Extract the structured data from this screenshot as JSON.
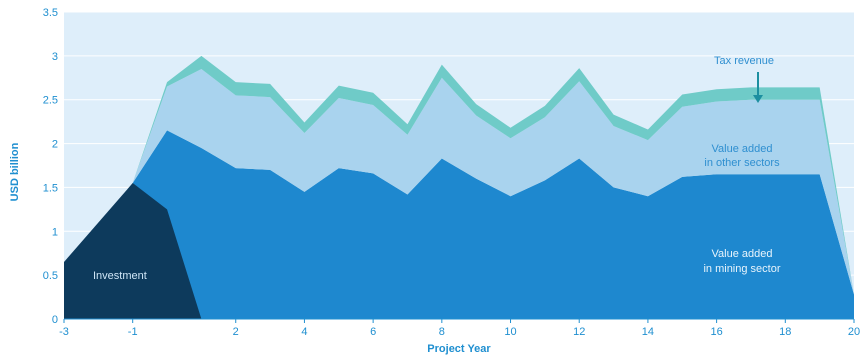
{
  "chart_data": {
    "type": "area",
    "xlabel": "Project Year",
    "ylabel": "USD billion",
    "xlim": [
      -3,
      20
    ],
    "ylim": [
      0,
      3.5
    ],
    "x_ticks": [
      "-3",
      "-1",
      "2",
      "4",
      "6",
      "8",
      "10",
      "12",
      "14",
      "16",
      "18",
      "20"
    ],
    "y_ticks": [
      "0",
      "0.5",
      "1",
      "1.5",
      "2",
      "2.5",
      "3",
      "3.5"
    ],
    "grid": "horizontal",
    "series": [
      {
        "name": "Investment",
        "color": "#0d3a5c",
        "x": [
          -3,
          -1,
          0,
          1,
          2
        ],
        "values": [
          0.65,
          1.55,
          1.25,
          0.0,
          0.0
        ]
      },
      {
        "name": "Value added in mining sector",
        "color": "#1e88cf",
        "x": [
          -1,
          0,
          1,
          2,
          3,
          4,
          5,
          6,
          7,
          8,
          9,
          10,
          11,
          12,
          13,
          14,
          15,
          16,
          17,
          18,
          19,
          20
        ],
        "values": [
          1.55,
          2.15,
          1.95,
          1.72,
          1.7,
          1.45,
          1.72,
          1.66,
          1.42,
          1.83,
          1.6,
          1.4,
          1.58,
          1.83,
          1.5,
          1.4,
          1.62,
          1.65,
          1.65,
          1.65,
          1.65,
          0.28
        ]
      },
      {
        "name": "Value added in other sector",
        "color": "#a9d3ee",
        "x": [
          -1,
          0,
          1,
          2,
          3,
          4,
          5,
          6,
          7,
          8,
          9,
          10,
          11,
          12,
          13,
          14,
          15,
          16,
          17,
          18,
          19,
          20
        ],
        "values": [
          0.0,
          0.5,
          0.9,
          0.83,
          0.83,
          0.67,
          0.8,
          0.78,
          0.68,
          0.92,
          0.72,
          0.66,
          0.72,
          0.88,
          0.7,
          0.64,
          0.8,
          0.83,
          0.85,
          0.85,
          0.85,
          0.0
        ]
      },
      {
        "name": "Tax revenue",
        "color": "#6fcbc8",
        "x": [
          -1,
          0,
          1,
          2,
          3,
          4,
          5,
          6,
          7,
          8,
          9,
          10,
          11,
          12,
          13,
          14,
          15,
          16,
          17,
          18,
          19,
          20
        ],
        "values": [
          0.0,
          0.05,
          0.15,
          0.15,
          0.15,
          0.12,
          0.14,
          0.14,
          0.12,
          0.15,
          0.13,
          0.12,
          0.13,
          0.15,
          0.13,
          0.12,
          0.14,
          0.14,
          0.14,
          0.14,
          0.14,
          0.0
        ]
      }
    ],
    "annotations": {
      "investment": "Investment",
      "mining_line1": "Value added",
      "mining_line2": "in mining sector",
      "other_line1": "Value added",
      "other_line2": "in other sectors",
      "tax": "Tax revenue"
    }
  }
}
